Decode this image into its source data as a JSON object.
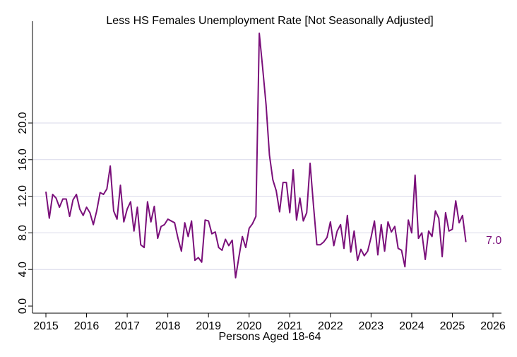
{
  "chart_data": {
    "type": "line",
    "title": "Less HS Females Unemployment Rate [Not Seasonally Adjusted]",
    "xlabel": "Persons Aged 18-64",
    "ylabel": "",
    "xlim": [
      2015,
      2026
    ],
    "ylim": [
      0,
      30
    ],
    "x_ticks": [
      2015,
      2016,
      2017,
      2018,
      2019,
      2020,
      2021,
      2022,
      2023,
      2024,
      2025,
      2026
    ],
    "x_tick_labels": [
      "2015",
      "2016",
      "2017",
      "2018",
      "2019",
      "2020",
      "2021",
      "2022",
      "2023",
      "2024",
      "2025",
      "2026"
    ],
    "y_ticks": [
      0,
      4,
      8,
      12,
      16,
      20
    ],
    "y_tick_labels": [
      "0.0",
      "4.0",
      "8.0",
      "12.0",
      "16.0",
      "20.0"
    ],
    "grid": "horizontal",
    "line_color": "#7a0f7a",
    "end_label": "7.0",
    "series": [
      {
        "start_year": 2015,
        "frequency": "monthly",
        "values": [
          12.5,
          9.6,
          12.2,
          11.8,
          10.8,
          11.7,
          11.7,
          9.8,
          11.6,
          12.2,
          10.6,
          9.9,
          10.8,
          10.2,
          8.9,
          10.4,
          12.4,
          12.2,
          12.8,
          15.3,
          10.4,
          9.5,
          13.2,
          9.2,
          10.6,
          11.4,
          8.2,
          10.8,
          6.7,
          6.4,
          11.4,
          9.2,
          10.9,
          7.4,
          8.7,
          8.9,
          9.5,
          9.3,
          9.1,
          7.4,
          6.0,
          9.1,
          7.6,
          9.3,
          5.0,
          5.3,
          4.8,
          9.4,
          9.3,
          7.9,
          8.1,
          6.4,
          6.1,
          7.3,
          6.6,
          7.2,
          3.1,
          5.4,
          7.6,
          6.4,
          8.5,
          9.0,
          9.8,
          29.8,
          26.0,
          22.0,
          16.5,
          13.8,
          12.6,
          10.3,
          13.5,
          13.5,
          10.2,
          14.9,
          9.4,
          11.8,
          9.3,
          10.2,
          15.6,
          11.0,
          6.7,
          6.7,
          7.0,
          7.5,
          9.2,
          6.6,
          8.2,
          8.9,
          6.3,
          9.9,
          5.9,
          8.2,
          5.0,
          6.2,
          5.5,
          6.0,
          7.5,
          9.3,
          5.6,
          8.9,
          6.0,
          9.2,
          8.1,
          8.7,
          6.3,
          6.1,
          4.3,
          9.4,
          8.0,
          14.3,
          7.4,
          8.0,
          5.1,
          8.2,
          7.6,
          10.4,
          9.6,
          5.4,
          10.2,
          8.2,
          8.4,
          11.5,
          9.1,
          9.9,
          7.0
        ]
      }
    ]
  }
}
